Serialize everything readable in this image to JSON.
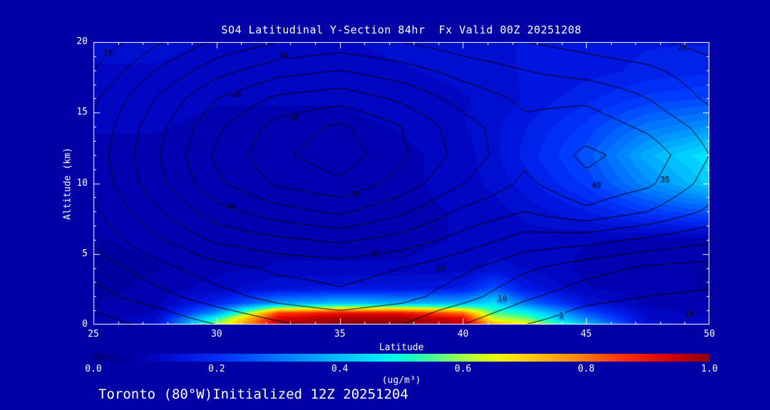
{
  "page": {
    "background": "#0000A6",
    "text_color": "#FFFFFF"
  },
  "footer": {
    "text": "Toronto (80°W)Initialized 12Z 20251204"
  },
  "chart_data": {
    "type": "heatmap",
    "title": "SO4 Latitudinal Y-Section 84hr  Fx Valid 00Z 20251208",
    "xlabel": "Latitude",
    "ylabel": "Altitude (km)",
    "xlim": [
      25,
      50
    ],
    "ylim": [
      0,
      20
    ],
    "x_ticks": [
      "25",
      "30",
      "35",
      "40",
      "45",
      "50"
    ],
    "y_ticks": [
      "0",
      "5",
      "10",
      "15",
      "20"
    ],
    "grid": false,
    "axis_color": "#FFFFFF",
    "colorbar": {
      "label": "(ug/m³)",
      "ticks": [
        "0.0",
        "0.2",
        "0.4",
        "0.6",
        "0.8",
        "1.0"
      ],
      "range": [
        0.0,
        1.0
      ],
      "stops": [
        [
          0.0,
          "#000080"
        ],
        [
          0.08,
          "#0000B4"
        ],
        [
          0.15,
          "#0016E0"
        ],
        [
          0.22,
          "#0038FF"
        ],
        [
          0.3,
          "#0075FF"
        ],
        [
          0.38,
          "#00B0FF"
        ],
        [
          0.45,
          "#00E0FF"
        ],
        [
          0.5,
          "#00FFD8"
        ],
        [
          0.55,
          "#48FF94"
        ],
        [
          0.6,
          "#A4FF48"
        ],
        [
          0.65,
          "#E8FF00"
        ],
        [
          0.7,
          "#FFD200"
        ],
        [
          0.78,
          "#FF8C00"
        ],
        [
          0.86,
          "#FF3000"
        ],
        [
          0.93,
          "#DC0000"
        ],
        [
          1.0,
          "#8B0000"
        ]
      ]
    },
    "fill": {
      "units": "ug/m3",
      "x": [
        25,
        27.5,
        30,
        32.5,
        35,
        37.5,
        40,
        41.25,
        42.5,
        45,
        47.5,
        50
      ],
      "y": [
        0,
        0.4,
        0.8,
        1.5,
        2.5,
        4,
        6,
        8,
        10,
        12,
        14,
        16,
        18,
        20
      ],
      "values": [
        [
          0.08,
          0.12,
          0.6,
          0.97,
          1.0,
          1.0,
          0.97,
          0.75,
          0.68,
          0.4,
          0.13,
          0.1
        ],
        [
          0.07,
          0.11,
          0.52,
          0.93,
          0.98,
          0.98,
          0.92,
          0.62,
          0.58,
          0.32,
          0.11,
          0.09
        ],
        [
          0.06,
          0.09,
          0.35,
          0.85,
          0.9,
          0.9,
          0.8,
          0.55,
          0.5,
          0.25,
          0.1,
          0.08
        ],
        [
          0.06,
          0.08,
          0.18,
          0.35,
          0.4,
          0.38,
          0.38,
          0.45,
          0.3,
          0.14,
          0.08,
          0.07
        ],
        [
          0.05,
          0.07,
          0.1,
          0.14,
          0.15,
          0.15,
          0.17,
          0.26,
          0.16,
          0.09,
          0.07,
          0.06
        ],
        [
          0.05,
          0.06,
          0.08,
          0.09,
          0.09,
          0.09,
          0.1,
          0.12,
          0.11,
          0.08,
          0.07,
          0.06
        ],
        [
          0.06,
          0.07,
          0.07,
          0.08,
          0.08,
          0.08,
          0.09,
          0.1,
          0.1,
          0.09,
          0.08,
          0.08
        ],
        [
          0.07,
          0.07,
          0.07,
          0.07,
          0.07,
          0.08,
          0.09,
          0.1,
          0.12,
          0.16,
          0.22,
          0.26
        ],
        [
          0.07,
          0.07,
          0.07,
          0.07,
          0.07,
          0.08,
          0.1,
          0.12,
          0.15,
          0.22,
          0.33,
          0.42
        ],
        [
          0.08,
          0.08,
          0.07,
          0.07,
          0.07,
          0.08,
          0.1,
          0.13,
          0.17,
          0.25,
          0.38,
          0.46
        ],
        [
          0.09,
          0.09,
          0.08,
          0.08,
          0.08,
          0.09,
          0.11,
          0.13,
          0.16,
          0.22,
          0.3,
          0.34
        ],
        [
          0.1,
          0.1,
          0.09,
          0.09,
          0.09,
          0.1,
          0.11,
          0.12,
          0.14,
          0.18,
          0.22,
          0.24
        ],
        [
          0.11,
          0.11,
          0.1,
          0.1,
          0.1,
          0.11,
          0.12,
          0.13,
          0.14,
          0.15,
          0.17,
          0.18
        ],
        [
          0.12,
          0.12,
          0.11,
          0.11,
          0.11,
          0.12,
          0.12,
          0.13,
          0.14,
          0.15,
          0.16,
          0.16
        ]
      ]
    },
    "contour": {
      "color": "#000000",
      "levels": [
        0,
        5,
        10,
        15,
        20,
        25,
        30,
        35,
        40,
        45,
        50,
        55
      ],
      "x": [
        25,
        27.5,
        30,
        32.5,
        35,
        37.5,
        40,
        42.5,
        45,
        47.5,
        50
      ],
      "y": [
        0,
        1,
        2,
        4,
        6,
        8,
        10,
        12,
        14,
        16,
        18,
        20
      ],
      "values": [
        [
          3,
          6,
          10,
          14,
          17,
          15,
          10,
          5,
          2,
          1,
          0
        ],
        [
          5,
          9,
          14,
          18,
          20,
          18,
          13,
          8,
          4,
          2,
          1
        ],
        [
          8,
          13,
          18,
          22,
          24,
          22,
          17,
          11,
          7,
          5,
          4
        ],
        [
          12,
          18,
          23,
          26,
          27,
          25,
          21,
          16,
          12,
          9,
          8
        ],
        [
          16,
          24,
          31,
          34,
          36,
          33,
          28,
          23,
          22,
          19,
          16
        ],
        [
          19,
          29,
          38,
          43,
          46,
          41,
          34,
          30,
          34,
          30,
          24
        ],
        [
          21,
          33,
          44,
          51,
          54,
          48,
          40,
          34,
          39,
          36,
          28
        ],
        [
          22,
          34,
          46,
          54,
          58,
          51,
          43,
          36,
          41,
          38,
          30
        ],
        [
          21,
          33,
          44,
          52,
          56,
          50,
          42,
          36,
          38,
          34,
          28
        ],
        [
          19,
          30,
          40,
          46,
          48,
          44,
          38,
          34,
          34,
          30,
          24
        ],
        [
          15,
          25,
          33,
          38,
          40,
          37,
          33,
          30,
          28,
          26,
          22
        ],
        [
          11,
          19,
          26,
          30,
          32,
          30,
          27,
          25,
          23,
          21,
          18
        ]
      ],
      "labels": [
        {
          "text": "10",
          "lat": 25.6,
          "alt": 19.2
        },
        {
          "text": "30",
          "lat": 32.7,
          "alt": 19.0
        },
        {
          "text": "40",
          "lat": 30.8,
          "alt": 16.2
        },
        {
          "text": "50",
          "lat": 33.1,
          "alt": 14.6
        },
        {
          "text": "50",
          "lat": 35.6,
          "alt": 9.2
        },
        {
          "text": "40",
          "lat": 30.6,
          "alt": 8.3
        },
        {
          "text": "30",
          "lat": 36.4,
          "alt": 5.0
        },
        {
          "text": "20",
          "lat": 39.1,
          "alt": 3.9
        },
        {
          "text": "10",
          "lat": 41.6,
          "alt": 1.8
        },
        {
          "text": "0",
          "lat": 44.0,
          "alt": 0.6
        },
        {
          "text": "10",
          "lat": 49.2,
          "alt": 0.7
        },
        {
          "text": "20",
          "lat": 48.9,
          "alt": 19.6
        },
        {
          "text": "35",
          "lat": 48.2,
          "alt": 10.2
        },
        {
          "text": "40",
          "lat": 45.4,
          "alt": 9.8
        }
      ]
    }
  }
}
